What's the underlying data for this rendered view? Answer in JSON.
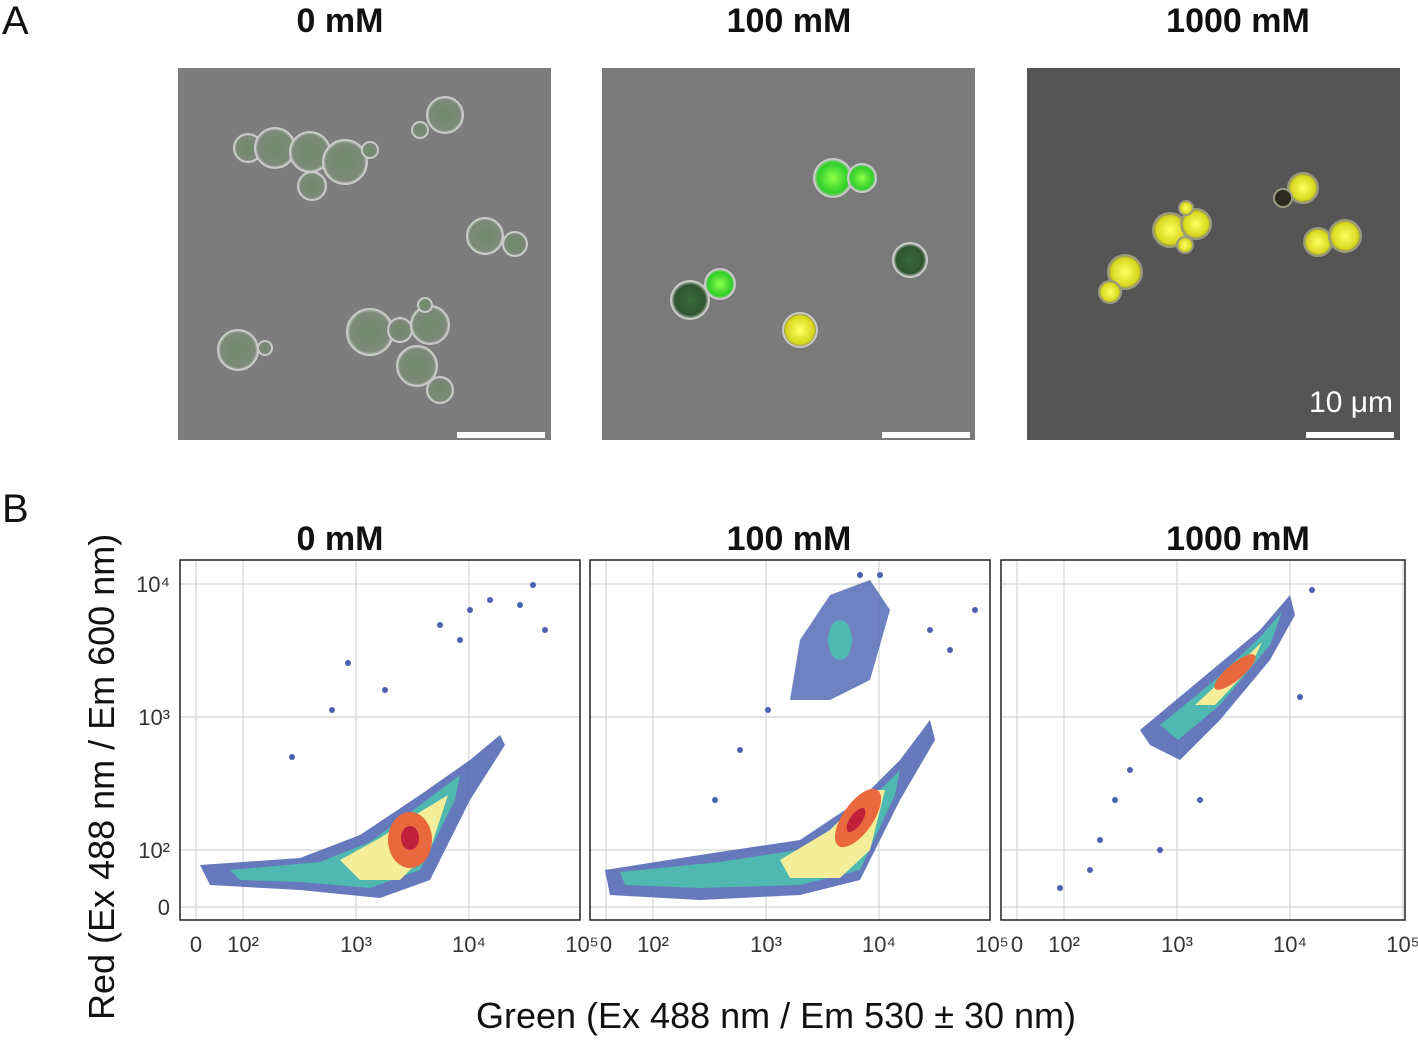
{
  "panel_labels": [
    "A",
    "B"
  ],
  "microscopy": {
    "conditions": [
      "0 mM",
      "100 mM",
      "1000 mM"
    ],
    "scale_bar": "10 μm"
  },
  "flow_cytometry": {
    "titles": [
      "0 mM",
      "100 mM",
      "1000 mM"
    ],
    "x_label": "Green (Ex 488 nm / Em 530 ± 30 nm)",
    "y_label": "Red  (Ex 488 nm / Em 600 nm)",
    "xticks": [
      {
        "value": 0,
        "label": "0"
      },
      {
        "value": 100,
        "label": "10²"
      },
      {
        "value": 1000,
        "label": "10³"
      },
      {
        "value": 10000,
        "label": "10⁴"
      },
      {
        "value": 100000,
        "label": "10⁵"
      }
    ],
    "yticks": [
      {
        "value": 0,
        "label": "0"
      },
      {
        "value": 100,
        "label": "10²"
      },
      {
        "value": 1000,
        "label": "10³"
      },
      {
        "value": 10000,
        "label": "10⁴"
      }
    ]
  }
}
